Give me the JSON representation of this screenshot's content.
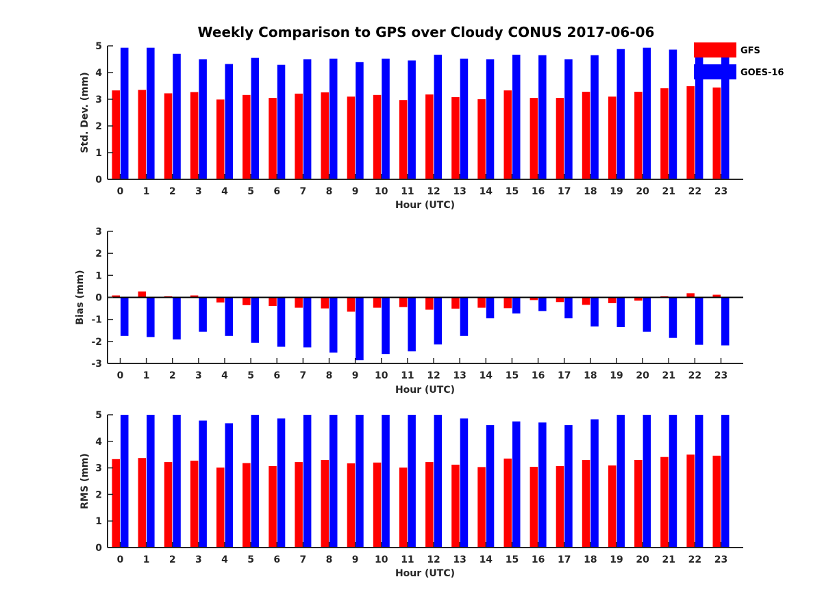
{
  "title": "Weekly Comparison to GPS over Cloudy CONUS 2017-06-06",
  "legend": {
    "position": "top-right",
    "entries": [
      "GFS",
      "GOES-16"
    ]
  },
  "colors": {
    "GFS": "#ff0000",
    "GOES-16": "#0000ff",
    "axis": "#262626",
    "zero_line": "#000000"
  },
  "chart_data": [
    {
      "type": "bar",
      "xlabel": "Hour (UTC)",
      "ylabel": "Std. Dev. (mm)",
      "ylim": [
        0,
        5
      ],
      "yticks": [
        0,
        1,
        2,
        3,
        4,
        5
      ],
      "categories": [
        "0",
        "1",
        "2",
        "3",
        "4",
        "5",
        "6",
        "7",
        "8",
        "9",
        "10",
        "11",
        "12",
        "13",
        "14",
        "15",
        "16",
        "17",
        "18",
        "19",
        "20",
        "21",
        "22",
        "23"
      ],
      "series": [
        {
          "name": "GFS",
          "values": [
            3.33,
            3.35,
            3.22,
            3.27,
            2.99,
            3.16,
            3.05,
            3.21,
            3.26,
            3.1,
            3.16,
            2.97,
            3.18,
            3.08,
            3.0,
            3.33,
            3.05,
            3.05,
            3.28,
            3.1,
            3.28,
            3.41,
            3.49,
            3.44
          ]
        },
        {
          "name": "GOES-16",
          "values": [
            4.93,
            4.93,
            4.7,
            4.5,
            4.32,
            4.55,
            4.29,
            4.5,
            4.52,
            4.39,
            4.52,
            4.45,
            4.67,
            4.52,
            4.5,
            4.67,
            4.65,
            4.5,
            4.65,
            4.88,
            4.93,
            4.86,
            4.95,
            4.68
          ]
        }
      ]
    },
    {
      "type": "bar",
      "xlabel": "Hour (UTC)",
      "ylabel": "Bias (mm)",
      "ylim": [
        -3,
        3
      ],
      "yticks": [
        -3,
        -2,
        -1,
        0,
        1,
        2,
        3
      ],
      "categories": [
        "0",
        "1",
        "2",
        "3",
        "4",
        "5",
        "6",
        "7",
        "8",
        "9",
        "10",
        "11",
        "12",
        "13",
        "14",
        "15",
        "16",
        "17",
        "18",
        "19",
        "20",
        "21",
        "22",
        "23"
      ],
      "series": [
        {
          "name": "GFS",
          "values": [
            0.09,
            0.27,
            0.05,
            0.09,
            -0.23,
            -0.35,
            -0.39,
            -0.47,
            -0.5,
            -0.65,
            -0.47,
            -0.44,
            -0.56,
            -0.51,
            -0.47,
            -0.49,
            -0.12,
            -0.21,
            -0.34,
            -0.26,
            -0.15,
            0.05,
            0.19,
            0.12
          ]
        },
        {
          "name": "GOES-16",
          "values": [
            -1.75,
            -1.8,
            -1.91,
            -1.56,
            -1.75,
            -2.06,
            -2.24,
            -2.27,
            -2.51,
            -2.85,
            -2.57,
            -2.45,
            -2.14,
            -1.75,
            -0.95,
            -0.73,
            -0.62,
            -0.95,
            -1.32,
            -1.35,
            -1.56,
            -1.84,
            -2.15,
            -2.18
          ]
        }
      ]
    },
    {
      "type": "bar",
      "xlabel": "Hour (UTC)",
      "ylabel": "RMS (mm)",
      "ylim": [
        0,
        5
      ],
      "yticks": [
        0,
        1,
        2,
        3,
        4,
        5
      ],
      "categories": [
        "0",
        "1",
        "2",
        "3",
        "4",
        "5",
        "6",
        "7",
        "8",
        "9",
        "10",
        "11",
        "12",
        "13",
        "14",
        "15",
        "16",
        "17",
        "18",
        "19",
        "20",
        "21",
        "22",
        "23"
      ],
      "series": [
        {
          "name": "GFS",
          "values": [
            3.33,
            3.37,
            3.22,
            3.27,
            3.01,
            3.18,
            3.07,
            3.22,
            3.3,
            3.17,
            3.2,
            3.01,
            3.22,
            3.12,
            3.03,
            3.35,
            3.04,
            3.07,
            3.3,
            3.09,
            3.3,
            3.41,
            3.5,
            3.46
          ]
        },
        {
          "name": "GOES-16",
          "values": [
            5.0,
            5.0,
            5.0,
            4.78,
            4.68,
            5.0,
            4.86,
            5.0,
            5.0,
            5.0,
            5.0,
            5.0,
            5.0,
            4.86,
            4.61,
            4.75,
            4.71,
            4.61,
            4.83,
            5.0,
            5.0,
            5.0,
            5.0,
            5.0
          ]
        }
      ]
    }
  ]
}
